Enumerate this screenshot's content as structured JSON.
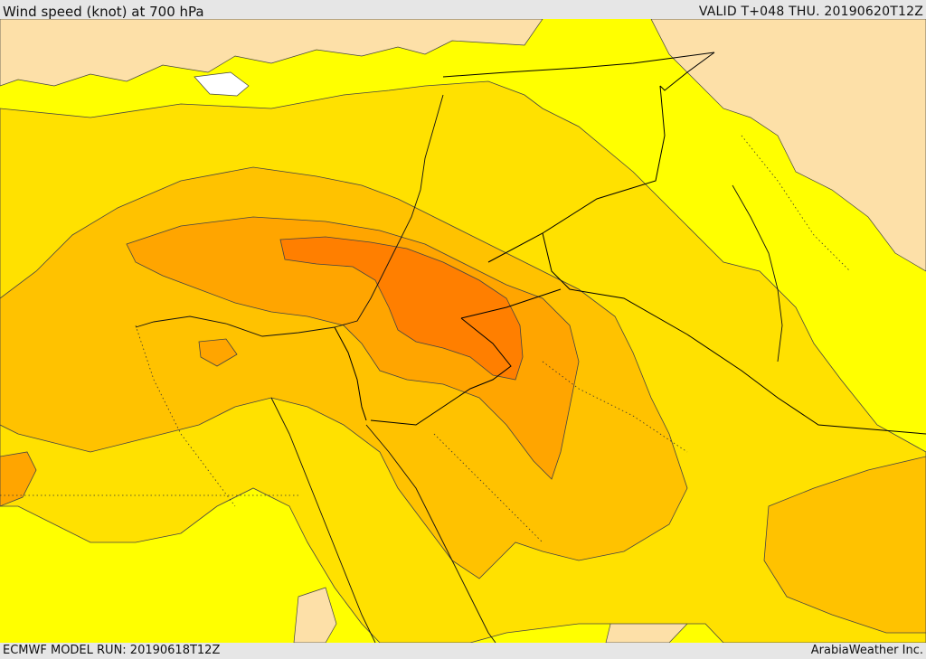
{
  "header": {
    "title": "Wind speed (knot) at 700 hPa",
    "valid": "VALID T+048 THU. 20190620T12Z"
  },
  "footer": {
    "model_run": "ECMWF MODEL RUN: 20190618T12Z",
    "credit": "ArabiaWeather Inc."
  },
  "map": {
    "parameter": "wind speed",
    "level": "700 hPa",
    "unit": "knot",
    "colors": {
      "calm": "#ffffff",
      "light": "#fde0a8",
      "moderate": "#ffff00",
      "fresh": "#ffe100",
      "strong": "#ffc200",
      "very_strong": "#ffa500",
      "max": "#ff7f00",
      "contour": "#444444",
      "border": "#000000"
    }
  }
}
